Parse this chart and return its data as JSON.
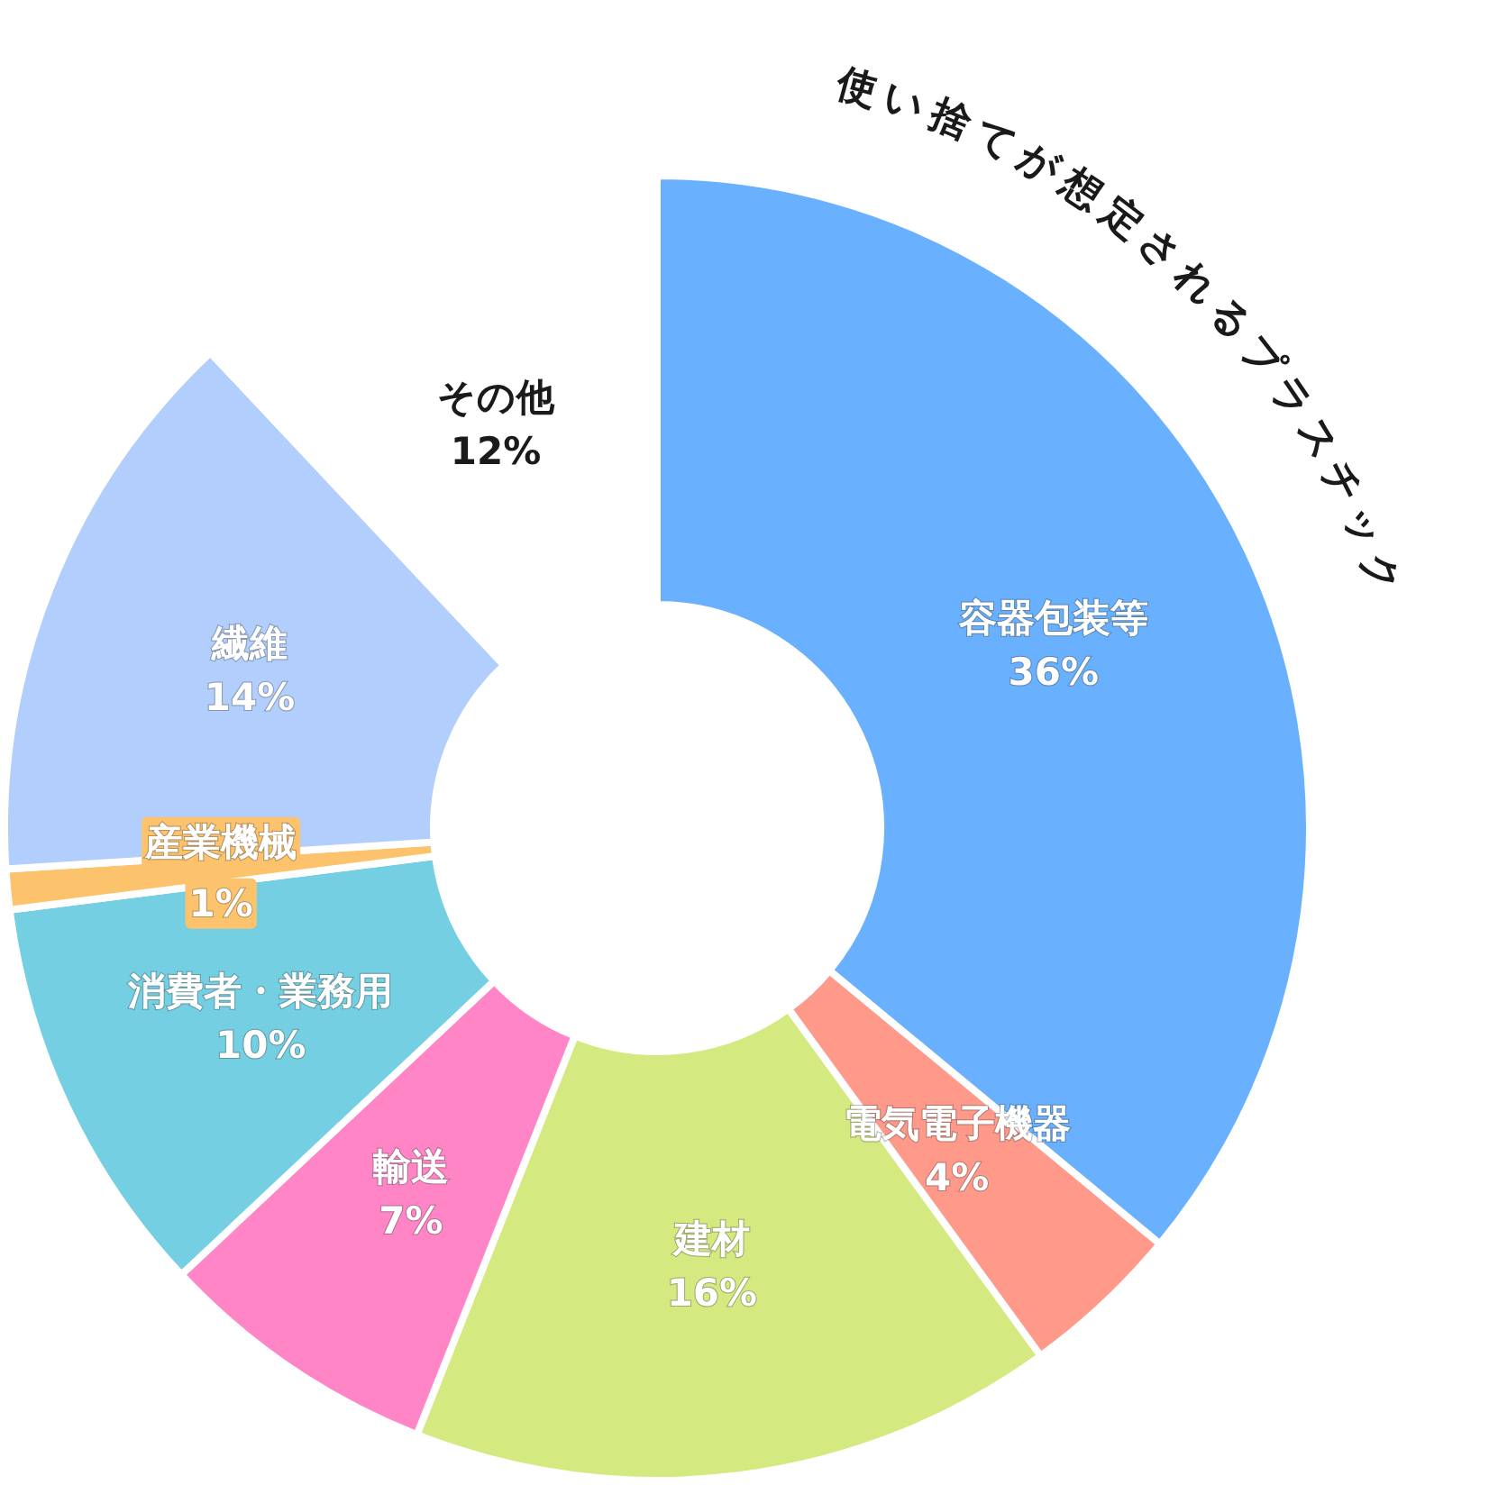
{
  "chart_data": {
    "type": "donut",
    "categories": [
      "容器包装等",
      "電気電子機器",
      "建材",
      "輸送",
      "消費者・業務用",
      "産業機械",
      "繊維",
      "その他"
    ],
    "values": [
      36,
      4,
      16,
      7,
      10,
      1,
      14,
      12
    ],
    "colors": [
      "#69b1fe",
      "#ff998a",
      "#d4ea80",
      "#ff85c6",
      "#75cfe3",
      "#fdc36c",
      "#b1cefc",
      "#ffffff"
    ],
    "value_labels": [
      "36%",
      "4%",
      "16%",
      "7%",
      "10%",
      "1%",
      "14%",
      "12%"
    ],
    "annotations": [
      "使い捨てが想定されるプラスチック"
    ]
  }
}
